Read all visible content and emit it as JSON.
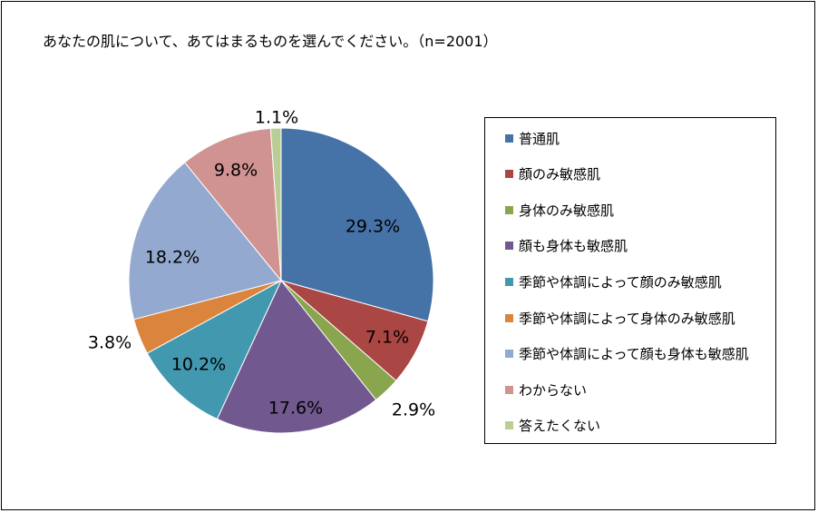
{
  "title": "あなたの肌について、あてはまるものを選んでください。（n=2001）",
  "chart_data": {
    "type": "pie",
    "title": "あなたの肌について、あてはまるものを選んでください。（n=2001）",
    "categories": [
      "普通肌",
      "顔のみ敏感肌",
      "身体のみ敏感肌",
      "顔も身体も敏感肌",
      "季節や体調によって顔のみ敏感肌",
      "季節や体調によって身体のみ敏感肌",
      "季節や体調によって顔も身体も敏感肌",
      "わからない",
      "答えたくない"
    ],
    "values": [
      29.3,
      7.1,
      2.9,
      17.6,
      10.2,
      3.8,
      18.2,
      9.8,
      1.1
    ],
    "labels": [
      "29.3%",
      "7.1%",
      "2.9%",
      "17.6%",
      "10.2%",
      "3.8%",
      "18.2%",
      "9.8%",
      "1.1%"
    ],
    "colors": [
      "#4572A7",
      "#AA4643",
      "#89A54E",
      "#71588F",
      "#4198AF",
      "#DB843D",
      "#93A9CF",
      "#D19392",
      "#B9CD96"
    ],
    "legend_position": "right"
  }
}
